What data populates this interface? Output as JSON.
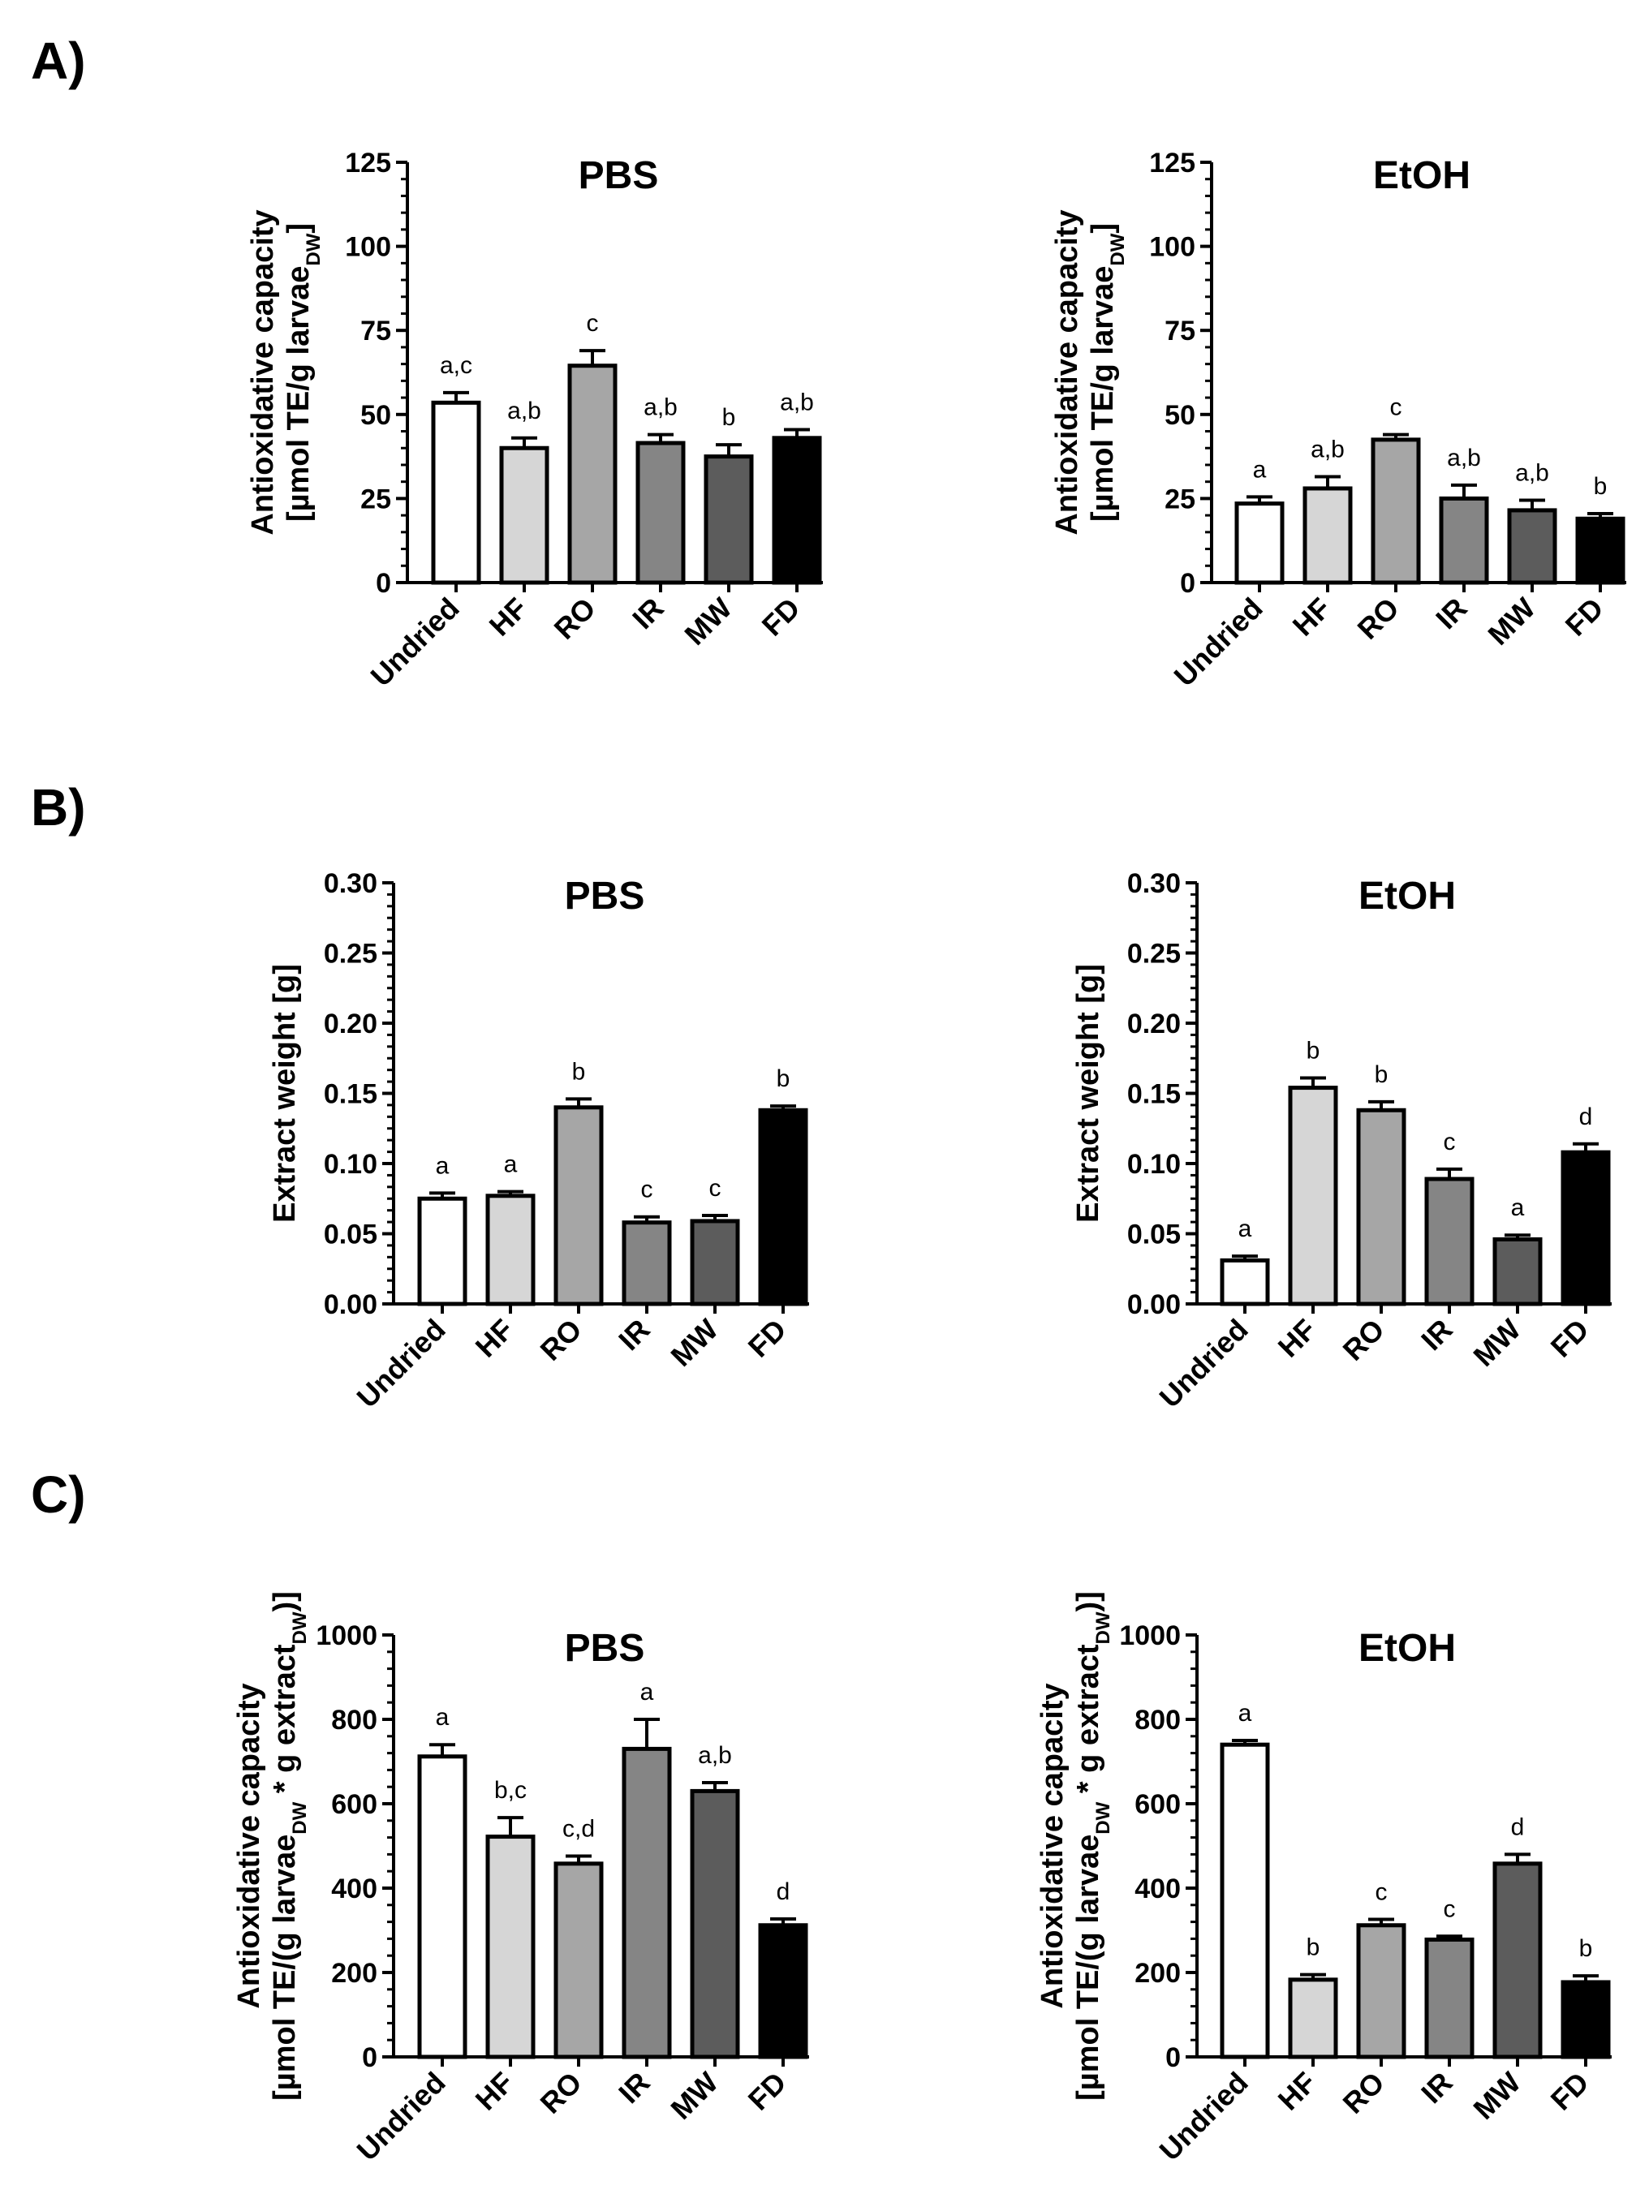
{
  "panels": [
    {
      "letter": "A)"
    },
    {
      "letter": "B)"
    },
    {
      "letter": "C)"
    }
  ],
  "colors": {
    "Undried": "#ffffff",
    "HF": "#d6d6d6",
    "RO": "#a6a6a6",
    "IR": "#858585",
    "MW": "#5c5c5c",
    "FD": "#000000",
    "outline": "#000000"
  },
  "chart_data": [
    {
      "id": "A-PBS",
      "panel": "A)",
      "type": "bar",
      "title": "PBS",
      "ylabel_lines": [
        [
          {
            "t": "Antioxidative capacity"
          }
        ],
        [
          {
            "t": "[µmol TE/g larvae"
          },
          {
            "t": "DW",
            "sub": true
          },
          {
            "t": "]"
          }
        ]
      ],
      "ylim": [
        0,
        125
      ],
      "yticks": [
        0,
        25,
        50,
        75,
        100,
        125
      ],
      "yminor": 5,
      "ydecimals": 0,
      "categories": [
        "Undried",
        "HF",
        "RO",
        "IR",
        "MW",
        "FD"
      ],
      "values": [
        53.5,
        40,
        64.5,
        41.5,
        37.5,
        43
      ],
      "errors": [
        3,
        3,
        4.5,
        2.5,
        3.5,
        2.5
      ],
      "significance": [
        "a,c",
        "a,b",
        "c",
        "a,b",
        "b",
        "a,b"
      ]
    },
    {
      "id": "A-EtOH",
      "panel": "A)",
      "type": "bar",
      "title": "EtOH",
      "ylabel_lines": [
        [
          {
            "t": "Antioxidative capacity"
          }
        ],
        [
          {
            "t": "[µmol TE/g larvae"
          },
          {
            "t": "DW",
            "sub": true
          },
          {
            "t": "]"
          }
        ]
      ],
      "ylim": [
        0,
        125
      ],
      "yticks": [
        0,
        25,
        50,
        75,
        100,
        125
      ],
      "yminor": 5,
      "ydecimals": 0,
      "categories": [
        "Undried",
        "HF",
        "RO",
        "IR",
        "MW",
        "FD"
      ],
      "values": [
        23.5,
        28,
        42.5,
        25,
        21.5,
        19
      ],
      "errors": [
        2,
        3.5,
        1.5,
        4,
        3,
        1.5
      ],
      "significance": [
        "a",
        "a,b",
        "c",
        "a,b",
        "a,b",
        "b"
      ]
    },
    {
      "id": "B-PBS",
      "panel": "B)",
      "type": "bar",
      "title": "PBS",
      "ylabel_lines": [
        [
          {
            "t": "Extract weight [g]"
          }
        ]
      ],
      "ylim": [
        0,
        0.3
      ],
      "yticks": [
        0,
        0.05,
        0.1,
        0.15,
        0.2,
        0.25,
        0.3
      ],
      "yminor": 6,
      "ydecimals": 2,
      "categories": [
        "Undried",
        "HF",
        "RO",
        "IR",
        "MW",
        "FD"
      ],
      "values": [
        0.075,
        0.077,
        0.14,
        0.058,
        0.059,
        0.138
      ],
      "errors": [
        0.004,
        0.003,
        0.006,
        0.004,
        0.004,
        0.003
      ],
      "significance": [
        "a",
        "a",
        "b",
        "c",
        "c",
        "b"
      ]
    },
    {
      "id": "B-EtOH",
      "panel": "B)",
      "type": "bar",
      "title": "EtOH",
      "ylabel_lines": [
        [
          {
            "t": "Extract weight [g]"
          }
        ]
      ],
      "ylim": [
        0,
        0.3
      ],
      "yticks": [
        0,
        0.05,
        0.1,
        0.15,
        0.2,
        0.25,
        0.3
      ],
      "yminor": 6,
      "ydecimals": 2,
      "categories": [
        "Undried",
        "HF",
        "RO",
        "IR",
        "MW",
        "FD"
      ],
      "values": [
        0.031,
        0.154,
        0.138,
        0.089,
        0.046,
        0.108
      ],
      "errors": [
        0.003,
        0.007,
        0.006,
        0.007,
        0.003,
        0.006
      ],
      "significance": [
        "a",
        "b",
        "b",
        "c",
        "a",
        "d"
      ]
    },
    {
      "id": "C-PBS",
      "panel": "C)",
      "type": "bar",
      "title": "PBS",
      "ylabel_lines": [
        [
          {
            "t": "Antioxidative capacity"
          }
        ],
        [
          {
            "t": "[µmol TE/(g larvae"
          },
          {
            "t": "DW",
            "sub": true
          },
          {
            "t": " * g extract"
          },
          {
            "t": "DW",
            "sub": true
          },
          {
            "t": ")]"
          }
        ]
      ],
      "ylim": [
        0,
        1000
      ],
      "yticks": [
        0,
        200,
        400,
        600,
        800,
        1000
      ],
      "yminor": 5,
      "ydecimals": 0,
      "categories": [
        "Undried",
        "HF",
        "RO",
        "IR",
        "MW",
        "FD"
      ],
      "values": [
        712,
        522,
        458,
        730,
        630,
        312
      ],
      "errors": [
        28,
        45,
        18,
        70,
        20,
        15
      ],
      "significance": [
        "a",
        "b,c",
        "c,d",
        "a",
        "a,b",
        "d"
      ]
    },
    {
      "id": "C-EtOH",
      "panel": "C)",
      "type": "bar",
      "title": "EtOH",
      "ylabel_lines": [
        [
          {
            "t": "Antioxidative capacity"
          }
        ],
        [
          {
            "t": "[µmol TE/(g larvae"
          },
          {
            "t": "DW",
            "sub": true
          },
          {
            "t": " * g extract"
          },
          {
            "t": "DW",
            "sub": true
          },
          {
            "t": ")]"
          }
        ]
      ],
      "ylim": [
        0,
        1000
      ],
      "yticks": [
        0,
        200,
        400,
        600,
        800,
        1000
      ],
      "yminor": 5,
      "ydecimals": 0,
      "categories": [
        "Undried",
        "HF",
        "RO",
        "IR",
        "MW",
        "FD"
      ],
      "values": [
        740,
        183,
        312,
        278,
        458,
        177
      ],
      "errors": [
        10,
        12,
        14,
        8,
        22,
        15
      ],
      "significance": [
        "a",
        "b",
        "c",
        "c",
        "d",
        "b"
      ]
    }
  ]
}
